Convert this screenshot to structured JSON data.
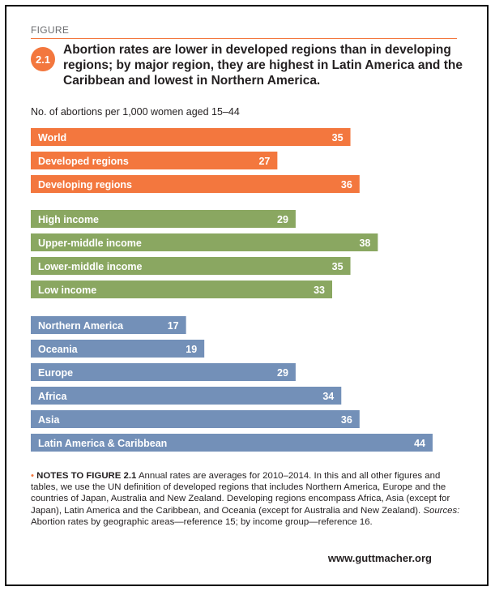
{
  "figure_label": "FIGURE",
  "figure_number": "2.1",
  "title": "Abortion rates are lower in developed regions than in developing regions; by major region, they are highest in Latin America and the Caribbean and lowest in Northern America.",
  "colors": {
    "orange": "#f3773e",
    "green": "#8aa761",
    "blue": "#7390b8"
  },
  "chart_data": {
    "type": "bar",
    "orientation": "horizontal",
    "unit_label": "No. of abortions per 1,000 women aged 15–44",
    "xlim": [
      0,
      44
    ],
    "groups": [
      {
        "color": "#f3773e",
        "bars": [
          {
            "category": "World",
            "value": 35
          },
          {
            "category": "Developed regions",
            "value": 27
          },
          {
            "category": "Developing regions",
            "value": 36
          }
        ]
      },
      {
        "color": "#8aa761",
        "bars": [
          {
            "category": "High income",
            "value": 29
          },
          {
            "category": "Upper-middle income",
            "value": 38
          },
          {
            "category": "Lower-middle income",
            "value": 35
          },
          {
            "category": "Low income",
            "value": 33
          }
        ]
      },
      {
        "color": "#7390b8",
        "bars": [
          {
            "category": "Northern America",
            "value": 17
          },
          {
            "category": "Oceania",
            "value": 19
          },
          {
            "category": "Europe",
            "value": 29
          },
          {
            "category": "Africa",
            "value": 34
          },
          {
            "category": "Asia",
            "value": 36
          },
          {
            "category": "Latin America & Caribbean",
            "value": 44
          }
        ]
      }
    ]
  },
  "notes": {
    "bullet": "•",
    "heading": "NOTES TO FIGURE 2.1",
    "body": "Annual rates are averages for 2010–2014. In this and all other figures and tables, we use the UN definition of developed regions that includes Northern America, Europe and the countries of Japan, Australia and New Zealand. Developing regions encompass Africa, Asia (except for Japan), Latin America and the Caribbean, and Oceania (except for Australia and New Zealand).",
    "sources_label": "Sources:",
    "sources_text": "Abortion rates by geographic areas—reference 15; by income group—reference 16."
  },
  "website": "www.guttmacher.org"
}
